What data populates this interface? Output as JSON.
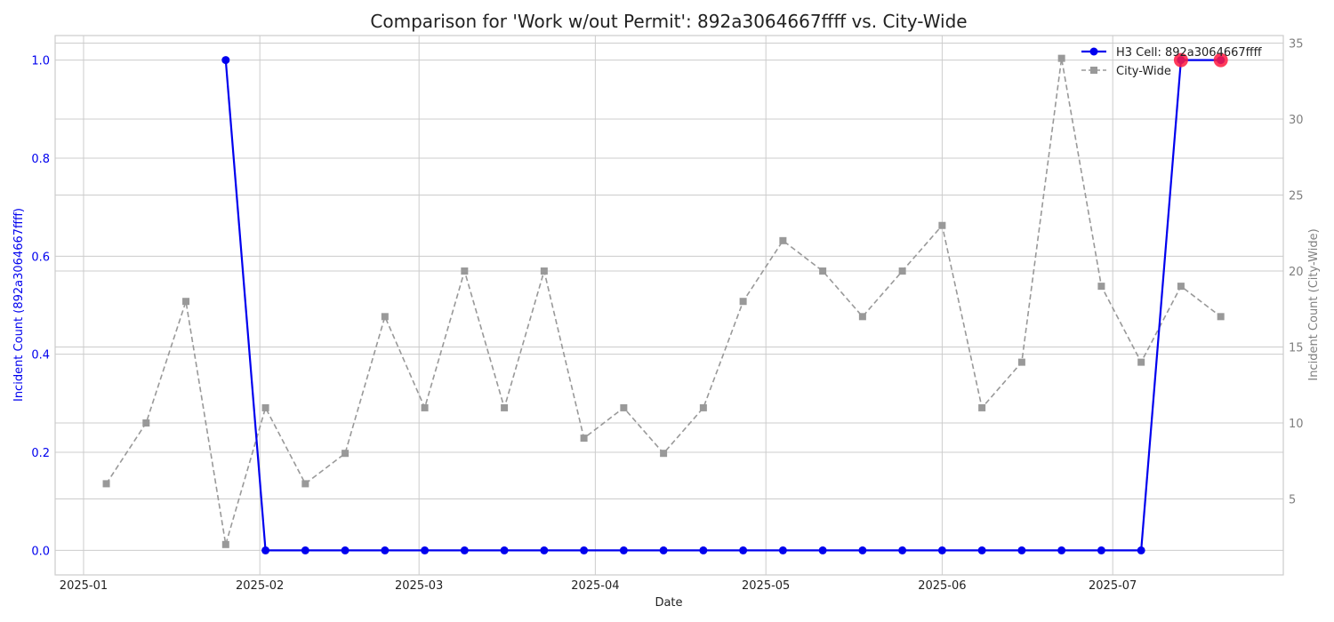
{
  "chart_data": {
    "type": "line",
    "title": "Comparison for 'Work w/out Permit': 892a3064667ffff vs. City-Wide",
    "xlabel": "Date",
    "ylabel_left": "Incident Count (892a3064667ffff)",
    "ylabel_right": "Incident Count (City-Wide)",
    "x_ticks": [
      "2025-01",
      "2025-02",
      "2025-03",
      "2025-04",
      "2025-05",
      "2025-06",
      "2025-07"
    ],
    "xlim": [
      "2024-12-27",
      "2025-07-31"
    ],
    "ylim_left": [
      -0.05,
      1.05
    ],
    "ylim_right": [
      0,
      35.5
    ],
    "left_ticks": [
      "0.0",
      "0.2",
      "0.4",
      "0.6",
      "0.8",
      "1.0"
    ],
    "right_ticks": [
      "5",
      "10",
      "15",
      "20",
      "25",
      "30",
      "35"
    ],
    "grid": true,
    "legend_position": "top-right",
    "colors": {
      "h3": "#0000ee",
      "city": "#999999",
      "highlight": "#ff1a40"
    },
    "series": [
      {
        "name": "H3 Cell: 892a3064667ffff",
        "axis": "left",
        "style": "solid-circle",
        "points": [
          [
            "2025-01-26",
            1
          ],
          [
            "2025-02-02",
            0
          ],
          [
            "2025-02-09",
            0
          ],
          [
            "2025-02-16",
            0
          ],
          [
            "2025-02-23",
            0
          ],
          [
            "2025-03-02",
            0
          ],
          [
            "2025-03-09",
            0
          ],
          [
            "2025-03-16",
            0
          ],
          [
            "2025-03-23",
            0
          ],
          [
            "2025-03-30",
            0
          ],
          [
            "2025-04-06",
            0
          ],
          [
            "2025-04-13",
            0
          ],
          [
            "2025-04-20",
            0
          ],
          [
            "2025-04-27",
            0
          ],
          [
            "2025-05-04",
            0
          ],
          [
            "2025-05-11",
            0
          ],
          [
            "2025-05-18",
            0
          ],
          [
            "2025-05-25",
            0
          ],
          [
            "2025-06-01",
            0
          ],
          [
            "2025-06-08",
            0
          ],
          [
            "2025-06-15",
            0
          ],
          [
            "2025-06-22",
            0
          ],
          [
            "2025-06-29",
            0
          ],
          [
            "2025-07-06",
            0
          ],
          [
            "2025-07-13",
            1
          ],
          [
            "2025-07-20",
            1
          ]
        ],
        "highlighted": [
          "2025-07-13",
          "2025-07-20"
        ]
      },
      {
        "name": "City-Wide",
        "axis": "right",
        "style": "dashed-square",
        "points": [
          [
            "2025-01-05",
            6
          ],
          [
            "2025-01-12",
            10
          ],
          [
            "2025-01-19",
            18
          ],
          [
            "2025-01-26",
            2
          ],
          [
            "2025-02-02",
            11
          ],
          [
            "2025-02-09",
            6
          ],
          [
            "2025-02-16",
            8
          ],
          [
            "2025-02-23",
            17
          ],
          [
            "2025-03-02",
            11
          ],
          [
            "2025-03-09",
            20
          ],
          [
            "2025-03-16",
            11
          ],
          [
            "2025-03-23",
            20
          ],
          [
            "2025-03-30",
            9
          ],
          [
            "2025-04-06",
            11
          ],
          [
            "2025-04-13",
            8
          ],
          [
            "2025-04-20",
            11
          ],
          [
            "2025-04-27",
            18
          ],
          [
            "2025-05-04",
            22
          ],
          [
            "2025-05-11",
            20
          ],
          [
            "2025-05-18",
            17
          ],
          [
            "2025-05-25",
            20
          ],
          [
            "2025-06-01",
            23
          ],
          [
            "2025-06-08",
            11
          ],
          [
            "2025-06-15",
            14
          ],
          [
            "2025-06-22",
            34
          ],
          [
            "2025-06-29",
            19
          ],
          [
            "2025-07-06",
            14
          ],
          [
            "2025-07-13",
            19
          ],
          [
            "2025-07-20",
            17
          ]
        ]
      }
    ]
  }
}
